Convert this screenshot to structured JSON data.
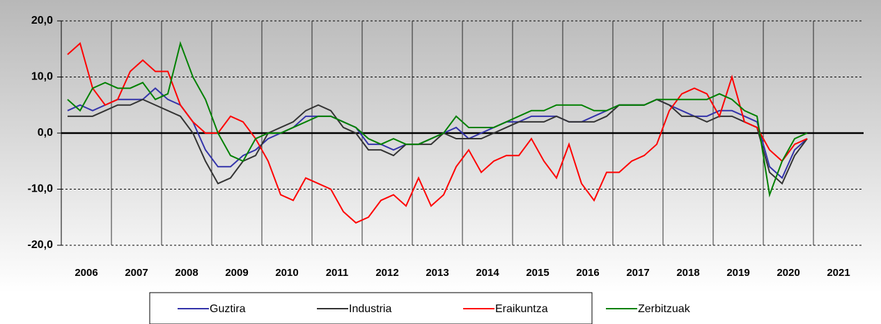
{
  "chart_data": {
    "type": "line",
    "categories": [
      "2006",
      null,
      null,
      null,
      "2007",
      null,
      null,
      null,
      "2008",
      null,
      null,
      null,
      "2009",
      null,
      null,
      null,
      "2010",
      null,
      null,
      null,
      "2011",
      null,
      null,
      null,
      "2012",
      null,
      null,
      null,
      "2013",
      null,
      null,
      null,
      "2014",
      null,
      null,
      null,
      "2015",
      null,
      null,
      null,
      "2016",
      null,
      null,
      null,
      "2017",
      null,
      null,
      null,
      "2018",
      null,
      null,
      null,
      "2019",
      null,
      null,
      null,
      "2020",
      null,
      null,
      null,
      "2021",
      null,
      null,
      null
    ],
    "series": [
      {
        "name": "Guztira",
        "color": "#3333aa",
        "values": [
          4,
          5,
          4,
          5,
          6,
          6,
          6,
          8,
          6,
          5,
          2,
          -3,
          -6,
          -6,
          -4,
          -3,
          -1,
          0,
          1,
          3,
          3,
          3,
          2,
          1,
          -2,
          -2,
          -3,
          -2,
          -2,
          -1,
          0,
          1,
          -1,
          0,
          1,
          2,
          2,
          3,
          3,
          3,
          2,
          2,
          3,
          4,
          5,
          5,
          5,
          6,
          5,
          4,
          3,
          3,
          4,
          4,
          3,
          2,
          -6,
          -8,
          -3,
          -1,
          null,
          null,
          null,
          null
        ]
      },
      {
        "name": "Industria",
        "color": "#333333",
        "values": [
          3,
          3,
          3,
          4,
          5,
          5,
          6,
          5,
          4,
          3,
          0,
          -5,
          -9,
          -8,
          -5,
          -4,
          0,
          1,
          2,
          4,
          5,
          4,
          1,
          0,
          -3,
          -3,
          -4,
          -2,
          -2,
          -2,
          0,
          -1,
          -1,
          -1,
          0,
          1,
          2,
          2,
          2,
          3,
          2,
          2,
          2,
          3,
          5,
          5,
          5,
          6,
          5,
          3,
          3,
          2,
          3,
          3,
          2,
          1,
          -7,
          -9,
          -4,
          -1,
          null,
          null,
          null,
          null
        ]
      },
      {
        "name": "Eraikuntza",
        "color": "#ff0000",
        "values": [
          14,
          16,
          8,
          5,
          6,
          11,
          13,
          11,
          11,
          5,
          2,
          0,
          0,
          3,
          2,
          -1,
          -5,
          -11,
          -12,
          -8,
          -9,
          -10,
          -14,
          -16,
          -15,
          -12,
          -11,
          -13,
          -8,
          -13,
          -11,
          -6,
          -3,
          -7,
          -5,
          -4,
          -4,
          -1,
          -5,
          -8,
          -2,
          -9,
          -12,
          -7,
          -7,
          -5,
          -4,
          -2,
          4,
          7,
          8,
          7,
          3,
          10,
          2,
          1,
          -3,
          -5,
          -2,
          -1,
          null,
          null,
          null,
          null
        ]
      },
      {
        "name": "Zerbitzuak",
        "color": "#008000",
        "values": [
          6,
          4,
          8,
          9,
          8,
          8,
          9,
          6,
          7,
          16,
          10,
          6,
          0,
          -4,
          -5,
          -1,
          0,
          0,
          1,
          2,
          3,
          3,
          2,
          1,
          -1,
          -2,
          -1,
          -2,
          -2,
          -1,
          0,
          3,
          1,
          1,
          1,
          2,
          3,
          4,
          4,
          5,
          5,
          5,
          4,
          4,
          5,
          5,
          5,
          6,
          6,
          6,
          6,
          6,
          7,
          6,
          4,
          3,
          -11,
          -5,
          -1,
          0,
          null,
          null,
          null,
          null
        ]
      }
    ],
    "ylim": [
      -20,
      20
    ],
    "yticks": [
      {
        "value": -20,
        "label": "-20,0"
      },
      {
        "value": -10,
        "label": "-10,0"
      },
      {
        "value": 0,
        "label": "0,0"
      },
      {
        "value": 10,
        "label": "10,0"
      },
      {
        "value": 20,
        "label": "20,0"
      }
    ],
    "grid": true
  }
}
